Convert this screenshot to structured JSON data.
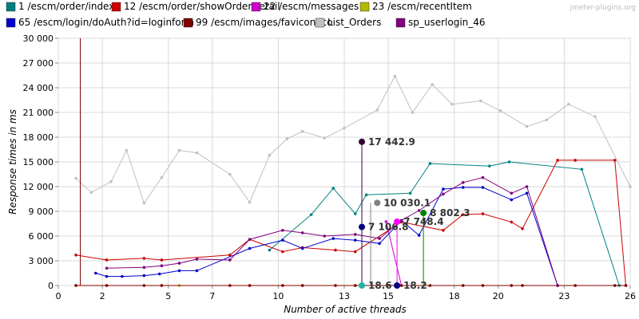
{
  "watermark": "jmeter-plugins.org",
  "chart_data": {
    "type": "line",
    "xlabel": "Number of active threads",
    "ylabel": "Response times in ms",
    "xlim": [
      0,
      26
    ],
    "ylim": [
      0,
      30000
    ],
    "x_ticks": [
      0,
      2,
      5,
      7,
      10,
      13,
      15,
      18,
      20,
      23,
      26
    ],
    "y_ticks": [
      0,
      3000,
      6000,
      9000,
      12000,
      15000,
      18000,
      21000,
      24000,
      27000,
      30000
    ],
    "x_tick_labels": [
      "0",
      "2",
      "5",
      "7",
      "10",
      "13",
      "15",
      "18",
      "20",
      "23",
      "26"
    ],
    "y_tick_labels": [
      "0",
      "3 000",
      "6 000",
      "9 000",
      "12 000",
      "15 000",
      "18 000",
      "21 000",
      "24 000",
      "27 000",
      "30 000"
    ],
    "grid": true,
    "legend_position": "top",
    "series": [
      {
        "name": "1 /escm/order/index",
        "color": "#008080",
        "points": [
          [
            9.6,
            4300
          ],
          [
            11.5,
            8600
          ],
          [
            12.5,
            11800
          ],
          [
            13.5,
            8700
          ],
          [
            14,
            11000
          ],
          [
            16,
            11200
          ],
          [
            16.9,
            14800
          ],
          [
            19.6,
            14500
          ],
          [
            20.5,
            15000
          ],
          [
            23.8,
            14100
          ],
          [
            25.5,
            0
          ]
        ]
      },
      {
        "name": "12 /escm/order/showOrderDetail",
        "color": "#cc0000",
        "points": [
          [
            0.8,
            3700
          ],
          [
            2.2,
            3100
          ],
          [
            3.9,
            3300
          ],
          [
            4.7,
            3100
          ],
          [
            7.8,
            3700
          ],
          [
            8.7,
            5600
          ],
          [
            10.2,
            4100
          ],
          [
            11.1,
            4600
          ],
          [
            12.6,
            4300
          ],
          [
            13.5,
            4100
          ],
          [
            15.6,
            7700
          ],
          [
            17.5,
            6700
          ],
          [
            18.4,
            8600
          ],
          [
            19.3,
            8700
          ],
          [
            20.6,
            7700
          ],
          [
            21.1,
            6900
          ],
          [
            22.7,
            15200
          ],
          [
            23.5,
            15200
          ],
          [
            25.3,
            15200
          ],
          [
            25.8,
            0
          ]
        ]
      },
      {
        "name": "22 /escm/messages",
        "color": "#cc00cc",
        "points": [
          [
            14.9,
            7748.4
          ],
          [
            15.6,
            0
          ]
        ]
      },
      {
        "name": "23 /escm/recentItem",
        "color": "#b8b800",
        "points": [
          [
            0.8,
            0
          ],
          [
            2.2,
            0
          ],
          [
            3.9,
            0
          ],
          [
            4.7,
            0
          ],
          [
            5.5,
            0
          ],
          [
            7.8,
            0
          ],
          [
            8.7,
            0
          ],
          [
            10.2,
            0
          ],
          [
            11.1,
            0
          ],
          [
            12.6,
            0
          ],
          [
            13.5,
            0
          ],
          [
            16.9,
            0
          ],
          [
            18.4,
            0
          ],
          [
            19.3,
            0
          ],
          [
            20.6,
            0
          ],
          [
            21.1,
            0
          ],
          [
            22.7,
            0
          ],
          [
            23.5,
            0
          ],
          [
            25.3,
            0
          ]
        ]
      },
      {
        "name": "65 /escm/login/doAuth?id=loginform",
        "color": "#0000cc",
        "points": [
          [
            1.7,
            1500
          ],
          [
            2.2,
            1100
          ],
          [
            2.9,
            1100
          ],
          [
            3.9,
            1200
          ],
          [
            4.6,
            1400
          ],
          [
            5.5,
            1800
          ],
          [
            6.3,
            1800
          ],
          [
            8.7,
            4500
          ],
          [
            10.2,
            5500
          ],
          [
            11.1,
            4500
          ],
          [
            12.5,
            5700
          ],
          [
            13.5,
            5500
          ],
          [
            14.6,
            5100
          ],
          [
            15.6,
            7900
          ],
          [
            16.4,
            6100
          ],
          [
            17.5,
            11700
          ],
          [
            18.4,
            11900
          ],
          [
            19.3,
            11900
          ],
          [
            20.6,
            10400
          ],
          [
            21.3,
            11200
          ],
          [
            22.7,
            0
          ]
        ]
      },
      {
        "name": "99 /escm/images/favicon.ico",
        "color": "#800000",
        "points": [
          [
            0.8,
            0
          ],
          [
            2.2,
            0
          ],
          [
            3.9,
            0
          ],
          [
            4.7,
            0
          ],
          [
            7.8,
            0
          ],
          [
            8.7,
            0
          ],
          [
            10.2,
            0
          ],
          [
            11.1,
            0
          ],
          [
            12.6,
            0
          ],
          [
            13.5,
            0
          ],
          [
            15.6,
            0
          ],
          [
            16.9,
            0
          ],
          [
            18.4,
            0
          ],
          [
            19.3,
            0
          ],
          [
            20.6,
            0
          ],
          [
            21.1,
            0
          ],
          [
            22.7,
            0
          ],
          [
            23.5,
            0
          ],
          [
            25.3,
            0
          ],
          [
            25.8,
            0
          ]
        ]
      },
      {
        "name": "List_Orders",
        "color": "#c0c0c0",
        "points": [
          [
            0.8,
            13000
          ],
          [
            1.5,
            11300
          ],
          [
            2.4,
            12600
          ],
          [
            3.1,
            16400
          ],
          [
            3.9,
            10000
          ],
          [
            4.7,
            13100
          ],
          [
            5.5,
            16400
          ],
          [
            6.3,
            16100
          ],
          [
            7.8,
            13500
          ],
          [
            8.7,
            10100
          ],
          [
            9.6,
            15800
          ],
          [
            10.4,
            17800
          ],
          [
            11.1,
            18700
          ],
          [
            12.1,
            17900
          ],
          [
            13.0,
            19100
          ],
          [
            14.5,
            21300
          ],
          [
            15.3,
            25400
          ],
          [
            16.1,
            21000
          ],
          [
            17.0,
            24400
          ],
          [
            17.9,
            22000
          ],
          [
            19.2,
            22400
          ],
          [
            20.1,
            21200
          ],
          [
            21.3,
            19300
          ],
          [
            22.2,
            20100
          ],
          [
            23.2,
            22000
          ],
          [
            24.4,
            20500
          ],
          [
            26,
            12000
          ]
        ]
      },
      {
        "name": "sp_userlogin_46",
        "color": "#800080",
        "points": [
          [
            2.2,
            2100
          ],
          [
            3.9,
            2200
          ],
          [
            4.7,
            2400
          ],
          [
            5.5,
            2700
          ],
          [
            6.3,
            3200
          ],
          [
            7.8,
            3100
          ],
          [
            8.7,
            5600
          ],
          [
            10.2,
            6700
          ],
          [
            11.1,
            6400
          ],
          [
            12.1,
            6000
          ],
          [
            13.5,
            6200
          ],
          [
            14.6,
            5700
          ],
          [
            15.6,
            7900
          ],
          [
            16.4,
            9100
          ],
          [
            17.5,
            11100
          ],
          [
            18.4,
            12500
          ],
          [
            19.3,
            13100
          ],
          [
            20.6,
            11200
          ],
          [
            21.3,
            12000
          ],
          [
            22.7,
            0
          ]
        ]
      }
    ],
    "spikes": [
      {
        "x": 1.0,
        "value": 30000,
        "color": "#800000"
      },
      {
        "x": 13.8,
        "value": 17442.9,
        "color": "#400040"
      },
      {
        "x": 14.2,
        "value": 10030.1,
        "color": "#808080"
      },
      {
        "x": 15.4,
        "value": 7748.4,
        "color": "#ff00ff"
      },
      {
        "x": 16.6,
        "value": 8802.3,
        "color": "#008000"
      }
    ],
    "annotations": [
      {
        "x": 13.8,
        "value": 17442.9,
        "label": "17 442.9",
        "color": "#330033"
      },
      {
        "x": 13.8,
        "value": 7106.8,
        "label": "7 106.8",
        "color": "#000080"
      },
      {
        "x": 14.5,
        "value": 10030.1,
        "label": "10 030.1",
        "color": "#808080"
      },
      {
        "x": 15.4,
        "value": 7748.4,
        "label": "7 748.4",
        "color": "#ff00ff"
      },
      {
        "x": 16.6,
        "value": 8802.3,
        "label": "8 802.3",
        "color": "#008000"
      },
      {
        "x": 13.8,
        "value": 0,
        "label": "18.6",
        "color": "#20b2aa"
      },
      {
        "x": 15.4,
        "value": 0,
        "label": "18.2",
        "color": "#000080"
      }
    ]
  }
}
